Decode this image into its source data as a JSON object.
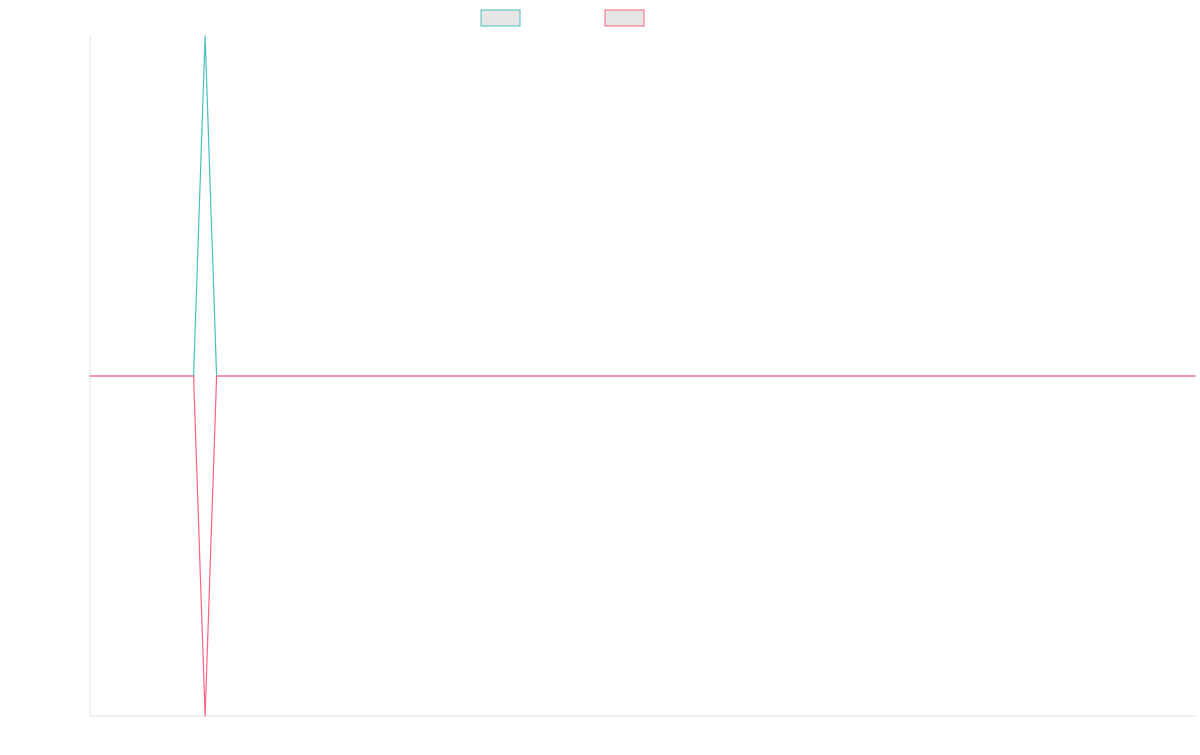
{
  "chart_data": {
    "type": "line",
    "title": "",
    "xlabel": "",
    "ylabel": "",
    "ylim": [
      -1,
      1
    ],
    "grid": false,
    "legend": "top-center",
    "x": [
      0,
      1,
      2,
      3,
      4,
      5,
      6,
      7,
      8,
      9,
      10,
      11,
      12,
      13,
      14,
      15,
      16,
      17,
      18,
      19,
      20,
      21,
      22,
      23,
      24,
      25,
      26,
      27,
      28,
      29,
      30,
      31,
      32,
      33,
      34,
      35,
      36,
      37,
      38,
      39,
      40,
      41,
      42,
      43,
      44,
      45,
      46,
      47,
      48,
      49,
      50,
      51,
      52,
      53,
      54,
      55,
      56,
      57,
      58,
      59,
      60,
      61,
      62,
      63,
      64,
      65,
      66,
      67,
      68,
      69,
      70,
      71,
      72,
      73,
      74,
      75,
      76,
      77,
      78,
      79,
      80,
      81,
      82,
      83,
      84,
      85,
      86,
      87,
      88,
      89,
      90,
      91,
      92,
      93,
      94,
      95,
      96
    ],
    "series": [
      {
        "name": "",
        "color": "#4bc0c0",
        "fill": "#e6e6e6",
        "values": [
          0,
          0,
          0,
          0,
          0,
          0,
          0,
          0,
          0,
          0,
          1,
          0,
          0,
          0,
          0,
          0,
          0,
          0,
          0,
          0,
          0,
          0,
          0,
          0,
          0,
          0,
          0,
          0,
          0,
          0,
          0,
          0,
          0,
          0,
          0,
          0,
          0,
          0,
          0,
          0,
          0,
          0,
          0,
          0,
          0,
          0,
          0,
          0,
          0,
          0,
          0,
          0,
          0,
          0,
          0,
          0,
          0,
          0,
          0,
          0,
          0,
          0,
          0,
          0,
          0,
          0,
          0,
          0,
          0,
          0,
          0,
          0,
          0,
          0,
          0,
          0,
          0,
          0,
          0,
          0,
          0,
          0,
          0,
          0,
          0,
          0,
          0,
          0,
          0,
          0,
          0,
          0,
          0,
          0,
          0,
          0,
          0
        ]
      },
      {
        "name": "",
        "color": "#ff6384",
        "fill": "#e6e6e6",
        "values": [
          0,
          0,
          0,
          0,
          0,
          0,
          0,
          0,
          0,
          0,
          -1,
          0,
          0,
          0,
          0,
          0,
          0,
          0,
          0,
          0,
          0,
          0,
          0,
          0,
          0,
          0,
          0,
          0,
          0,
          0,
          0,
          0,
          0,
          0,
          0,
          0,
          0,
          0,
          0,
          0,
          0,
          0,
          0,
          0,
          0,
          0,
          0,
          0,
          0,
          0,
          0,
          0,
          0,
          0,
          0,
          0,
          0,
          0,
          0,
          0,
          0,
          0,
          0,
          0,
          0,
          0,
          0,
          0,
          0,
          0,
          0,
          0,
          0,
          0,
          0,
          0,
          0,
          0,
          0,
          0,
          0,
          0,
          0,
          0,
          0,
          0,
          0,
          0,
          0,
          0,
          0,
          0,
          0,
          0,
          0,
          0,
          0
        ]
      }
    ]
  }
}
